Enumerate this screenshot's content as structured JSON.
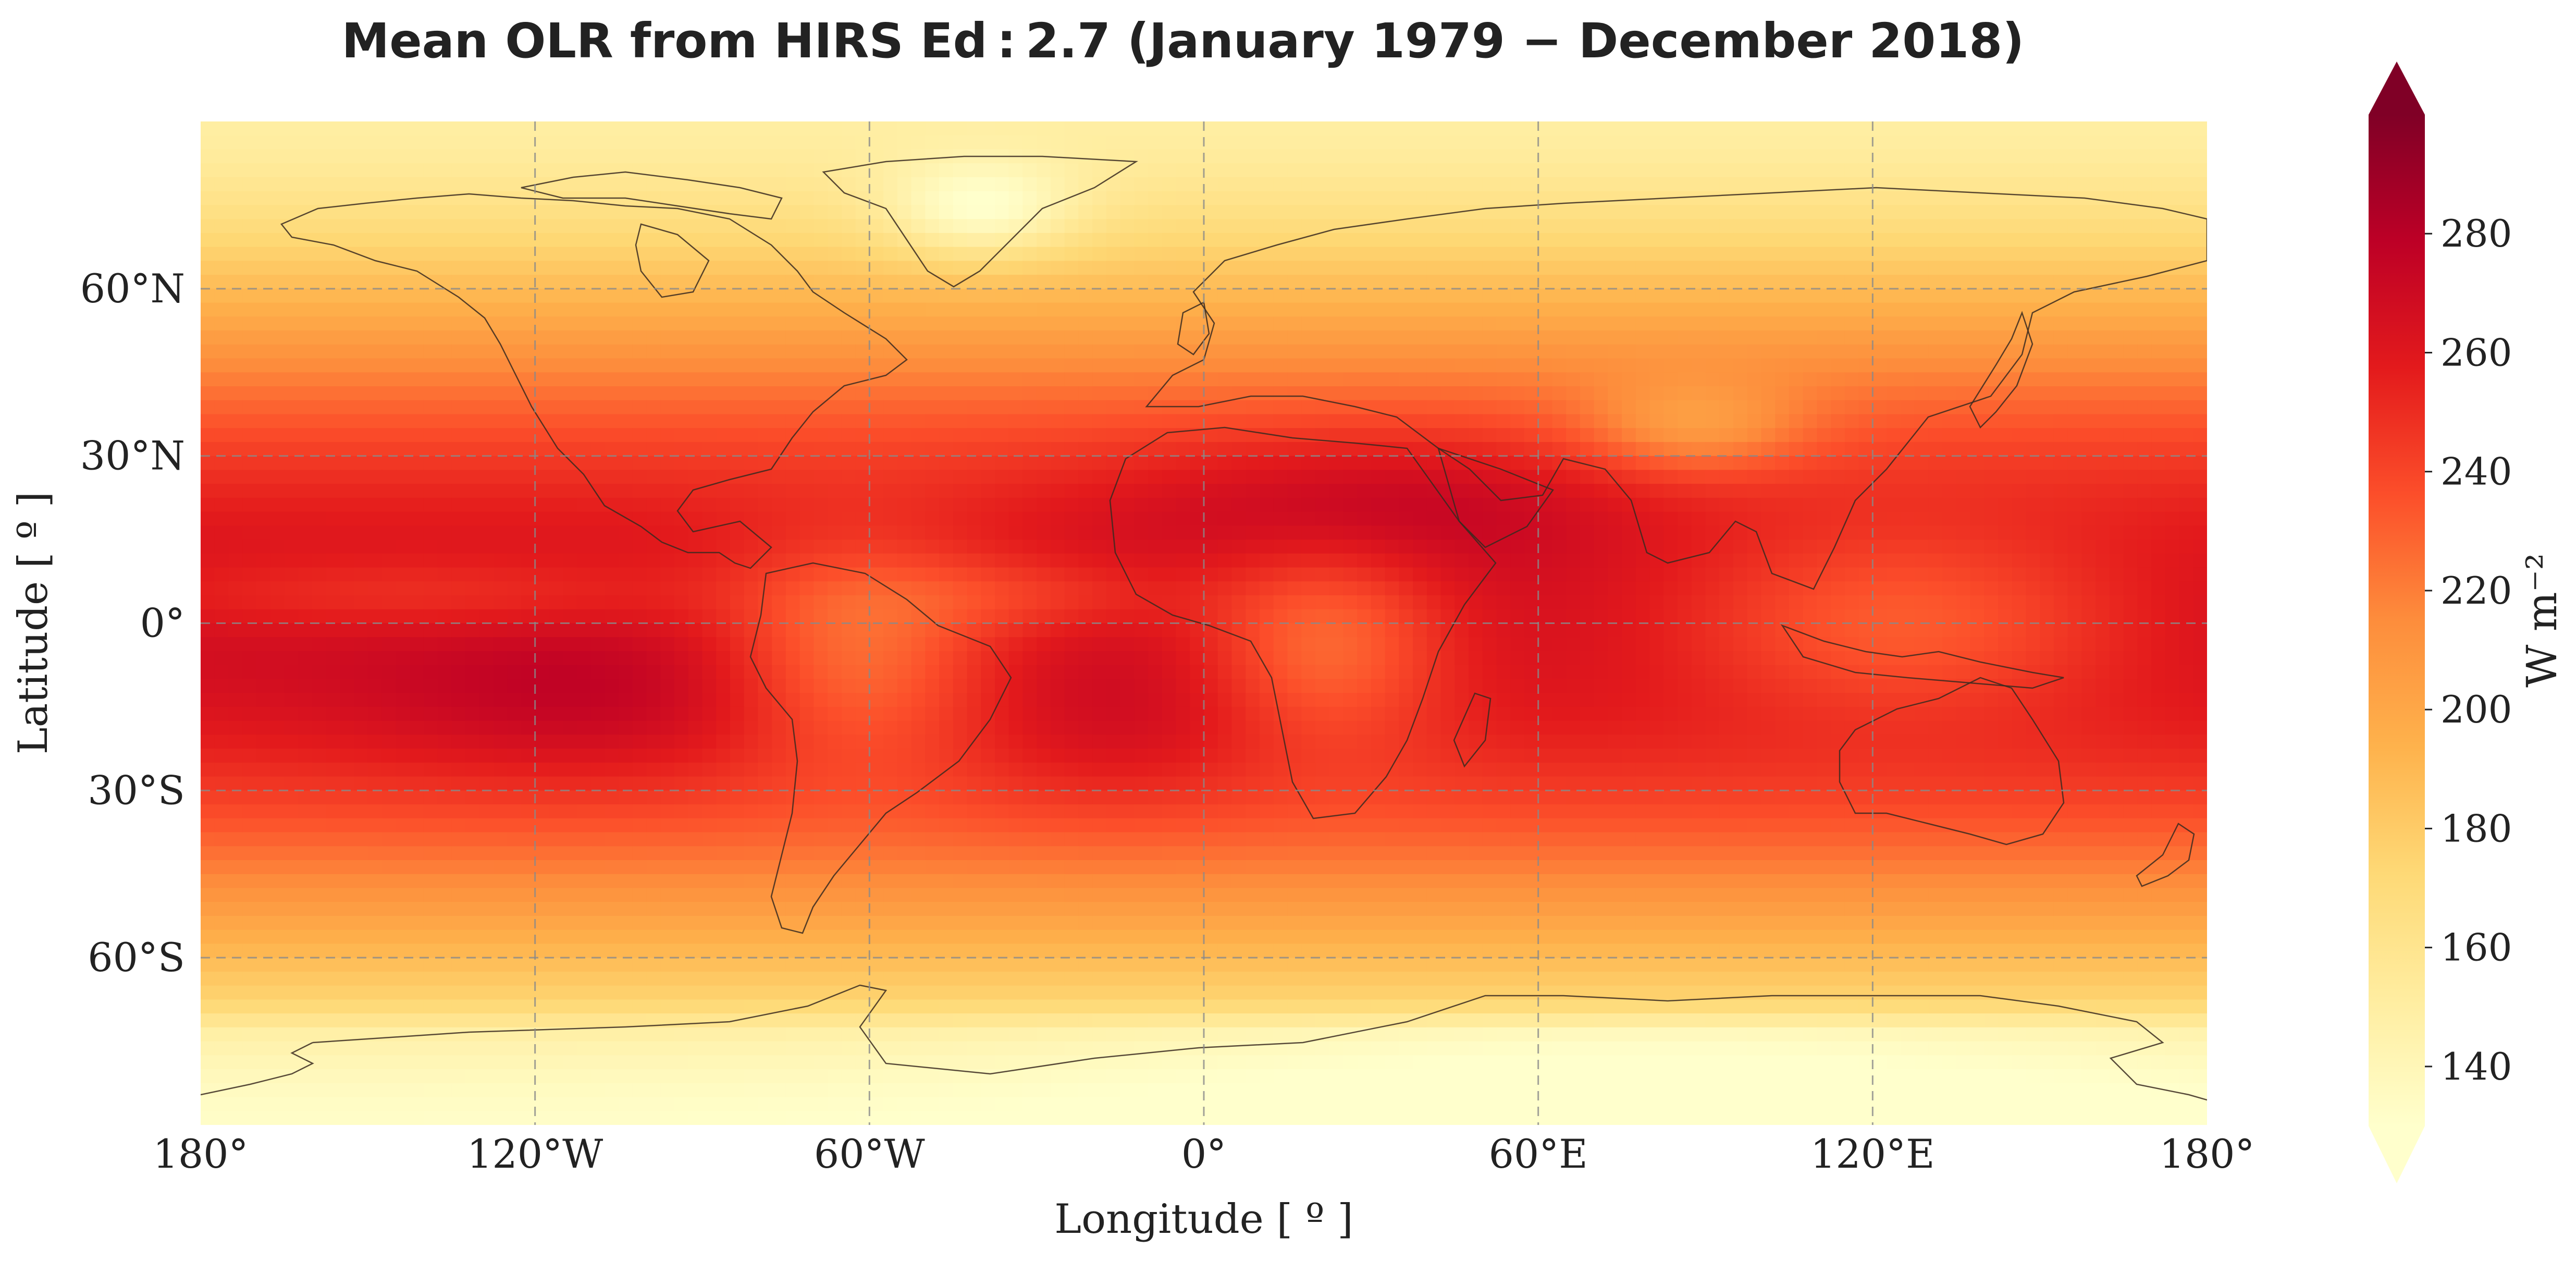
{
  "title": "Mean OLR from HIRS Ed : 2.7 (January 1979 − December 2018)",
  "xlabel": "Longitude [ º ]",
  "ylabel": "Latitude [ º ]",
  "x_ticks": [
    "180°",
    "120°W",
    "60°W",
    "0°",
    "60°E",
    "120°E",
    "180°"
  ],
  "y_ticks": [
    "60°N",
    "30°N",
    "0°",
    "30°S",
    "60°S"
  ],
  "colorbar": {
    "label": "W m⁻²",
    "ticks": [
      "140",
      "160",
      "180",
      "200",
      "220",
      "240",
      "260",
      "280"
    ],
    "colormap": "YlOrRd",
    "colors": [
      "#ffffcc",
      "#ffeda0",
      "#fed976",
      "#feb24c",
      "#fd8d3c",
      "#fc4e2a",
      "#e31a1c",
      "#bd0026",
      "#800026"
    ],
    "extend": "both"
  },
  "chart_data": {
    "type": "heatmap",
    "projection": "PlateCarree",
    "x_range_deg": [
      -180,
      180
    ],
    "y_range_deg": [
      -90,
      90
    ],
    "x_tick_values": [
      -180,
      -120,
      -60,
      0,
      60,
      120,
      180
    ],
    "y_tick_values": [
      60,
      30,
      0,
      -30,
      -60
    ],
    "color_range": [
      130,
      300
    ],
    "colorbar_tick_values": [
      140,
      160,
      180,
      200,
      220,
      240,
      260,
      280
    ],
    "grid": true,
    "coastlines": true
  }
}
